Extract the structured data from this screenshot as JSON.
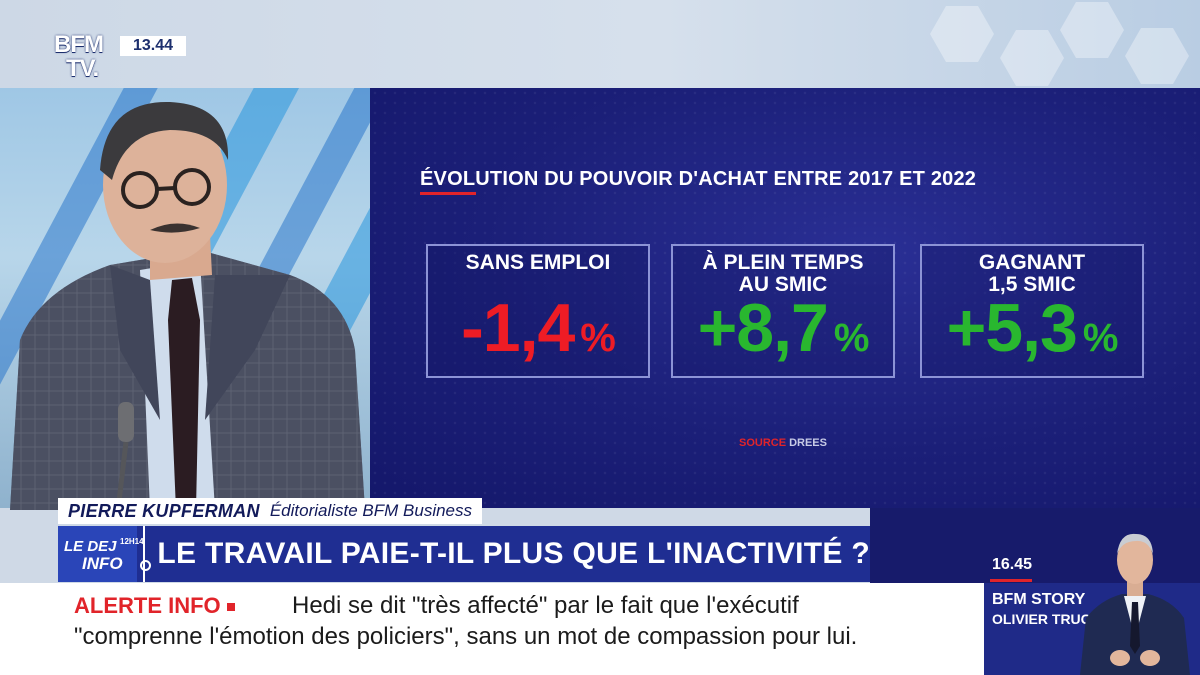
{
  "channel": {
    "logo_line1": "BFM",
    "logo_line2": "TV.",
    "clock": "13.44"
  },
  "graphic": {
    "title": "ÉVOLUTION DU POUVOIR D'ACHAT ENTRE 2017 ET 2022",
    "stats": [
      {
        "label_line1": "SANS EMPLOI",
        "label_line2": "",
        "value": "-1,4",
        "unit": "%",
        "color": "#ee1c25"
      },
      {
        "label_line1": "À PLEIN TEMPS",
        "label_line2": "AU SMIC",
        "value": "+8,7",
        "unit": "%",
        "color": "#29b72f"
      },
      {
        "label_line1": "GAGNANT",
        "label_line2": "1,5 SMIC",
        "value": "+5,3",
        "unit": "%",
        "color": "#29b72f"
      }
    ],
    "source_label": "SOURCE",
    "source_value": "DREES"
  },
  "lower_third": {
    "name": "PIERRE KUPFERMAN",
    "role": "Éditorialiste BFM Business",
    "show_line1": "LE DEJ",
    "show_time": "12H14",
    "show_line2": "INFO",
    "headline": "LE TRAVAIL PAIE-T-IL PLUS QUE L'INACTIVITÉ ?"
  },
  "next_program": {
    "time": "16.45",
    "title": "BFM STORY",
    "anchor": "OLIVIER TRUCHOT"
  },
  "ticker": {
    "label": "ALERTE INFO",
    "line1": "Hedi se dit \"très affecté\" par le fait que l'exécutif",
    "line2": "\"comprenne l'émotion des policiers\", sans un mot de compassion pour lui."
  },
  "colors": {
    "brand_blue": "#1f2e92",
    "alert_red": "#e1242a",
    "negative": "#ee1c25",
    "positive": "#29b72f"
  }
}
